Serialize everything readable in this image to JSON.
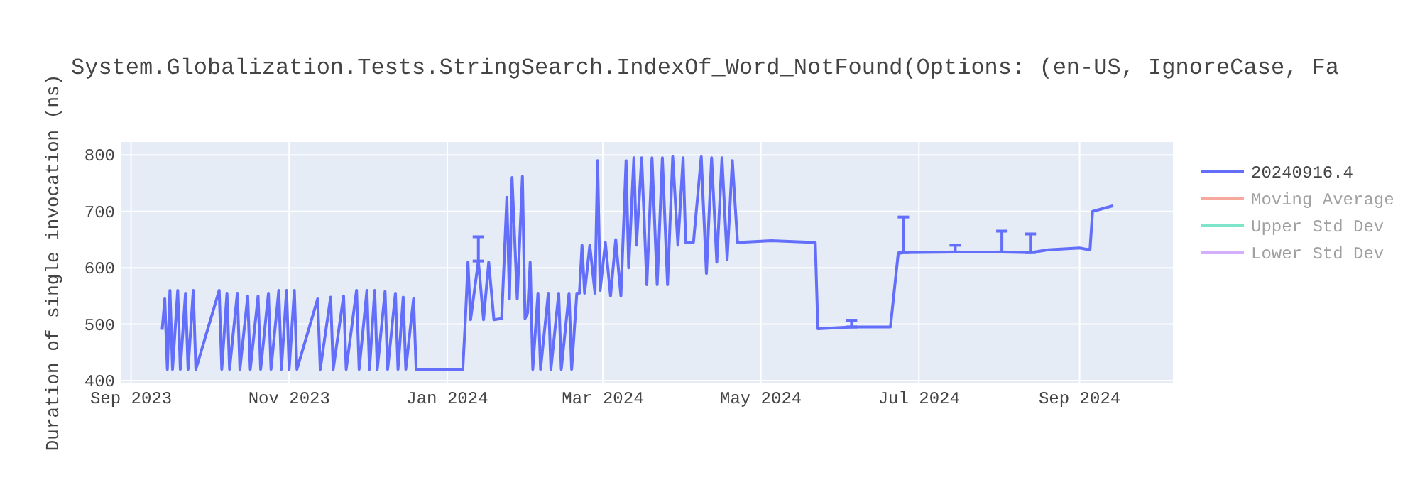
{
  "chart_data": {
    "type": "line",
    "title": "System.Globalization.Tests.StringSearch.IndexOf_Word_NotFound(Options: (en-US, IgnoreCase, Fa",
    "ylabel": "Duration of single invocation (ns)",
    "xlim": [
      "2023-08-28",
      "2024-10-07"
    ],
    "xticks": [
      {
        "value": "2023-09-01",
        "label": "Sep 2023"
      },
      {
        "value": "2023-11-01",
        "label": "Nov 2023"
      },
      {
        "value": "2024-01-01",
        "label": "Jan 2024"
      },
      {
        "value": "2024-03-01",
        "label": "Mar 2024"
      },
      {
        "value": "2024-05-01",
        "label": "May 2024"
      },
      {
        "value": "2024-07-01",
        "label": "Jul 2024"
      },
      {
        "value": "2024-09-01",
        "label": "Sep 2024"
      }
    ],
    "ylim": [
      395,
      823
    ],
    "yticks": [
      400,
      500,
      600,
      700,
      800
    ],
    "grid": true,
    "legend": "right",
    "line_style": "solid",
    "marker": "none",
    "series": [
      {
        "name": "20240916.4",
        "color": "#636efa",
        "x": [
          "2023-09-13",
          "2023-09-14",
          "2023-09-15",
          "2023-09-16",
          "2023-09-17",
          "2023-09-19",
          "2023-09-20",
          "2023-09-22",
          "2023-09-23",
          "2023-09-25",
          "2023-09-26",
          "2023-10-05",
          "2023-10-06",
          "2023-10-08",
          "2023-10-09",
          "2023-10-12",
          "2023-10-13",
          "2023-10-16",
          "2023-10-17",
          "2023-10-20",
          "2023-10-21",
          "2023-10-24",
          "2023-10-25",
          "2023-10-28",
          "2023-10-29",
          "2023-10-31",
          "2023-11-01",
          "2023-11-03",
          "2023-11-04",
          "2023-11-12",
          "2023-11-13",
          "2023-11-17",
          "2023-11-18",
          "2023-11-22",
          "2023-11-23",
          "2023-11-27",
          "2023-11-28",
          "2023-12-01",
          "2023-12-02",
          "2023-12-04",
          "2023-12-05",
          "2023-12-08",
          "2023-12-09",
          "2023-12-12",
          "2023-12-13",
          "2023-12-15",
          "2023-12-16",
          "2023-12-19",
          "2023-12-20",
          "2024-01-07",
          "2024-01-08",
          "2024-01-09",
          "2024-01-10",
          "2024-01-13",
          "2024-01-15",
          "2024-01-17",
          "2024-01-19",
          "2024-01-22",
          "2024-01-24",
          "2024-01-25",
          "2024-01-26",
          "2024-01-28",
          "2024-01-30",
          "2024-01-31",
          "2024-02-01",
          "2024-02-02",
          "2024-02-03",
          "2024-02-05",
          "2024-02-06",
          "2024-02-09",
          "2024-02-10",
          "2024-02-13",
          "2024-02-14",
          "2024-02-17",
          "2024-02-18",
          "2024-02-20",
          "2024-02-21",
          "2024-02-22",
          "2024-02-23",
          "2024-02-25",
          "2024-02-27",
          "2024-02-28",
          "2024-02-29",
          "2024-03-02",
          "2024-03-04",
          "2024-03-06",
          "2024-03-08",
          "2024-03-10",
          "2024-03-11",
          "2024-03-13",
          "2024-03-14",
          "2024-03-16",
          "2024-03-18",
          "2024-03-20",
          "2024-03-22",
          "2024-03-24",
          "2024-03-26",
          "2024-03-28",
          "2024-03-30",
          "2024-04-01",
          "2024-04-02",
          "2024-04-05",
          "2024-04-08",
          "2024-04-10",
          "2024-04-12",
          "2024-04-14",
          "2024-04-16",
          "2024-04-18",
          "2024-04-20",
          "2024-04-22",
          "2024-05-05",
          "2024-05-22",
          "2024-05-23",
          "2024-06-05",
          "2024-06-20",
          "2024-06-23",
          "2024-06-25",
          "2024-07-15",
          "2024-08-02",
          "2024-08-13",
          "2024-08-20",
          "2024-09-01",
          "2024-09-05",
          "2024-09-06",
          "2024-09-10",
          "2024-09-14"
        ],
        "values": [
          490,
          545,
          420,
          560,
          420,
          560,
          420,
          555,
          420,
          560,
          420,
          560,
          420,
          555,
          420,
          555,
          420,
          550,
          420,
          550,
          420,
          555,
          420,
          560,
          420,
          560,
          420,
          560,
          420,
          545,
          420,
          548,
          420,
          550,
          420,
          560,
          420,
          560,
          420,
          560,
          420,
          558,
          420,
          555,
          420,
          548,
          420,
          545,
          420,
          420,
          508,
          610,
          508,
          612,
          508,
          610,
          508,
          510,
          725,
          545,
          760,
          545,
          762,
          510,
          520,
          610,
          420,
          555,
          420,
          555,
          420,
          555,
          420,
          555,
          420,
          555,
          555,
          640,
          555,
          640,
          555,
          790,
          560,
          645,
          550,
          650,
          550,
          790,
          600,
          795,
          640,
          795,
          570,
          795,
          570,
          795,
          570,
          797,
          640,
          795,
          645,
          645,
          797,
          590,
          795,
          610,
          795,
          615,
          790,
          645,
          648,
          645,
          492,
          495,
          495,
          625,
          627,
          628,
          628,
          627,
          632,
          635,
          632,
          700,
          705,
          710
        ],
        "errors": [
          null,
          null,
          null,
          null,
          null,
          null,
          null,
          null,
          null,
          null,
          null,
          null,
          null,
          null,
          null,
          null,
          null,
          null,
          null,
          null,
          null,
          null,
          null,
          null,
          null,
          null,
          null,
          null,
          null,
          null,
          null,
          null,
          null,
          null,
          null,
          null,
          null,
          null,
          null,
          null,
          null,
          null,
          null,
          null,
          null,
          null,
          null,
          null,
          null,
          null,
          null,
          null,
          null,
          [
            612,
            655
          ],
          null,
          null,
          null,
          null,
          null,
          null,
          null,
          null,
          null,
          null,
          null,
          null,
          null,
          null,
          null,
          null,
          null,
          null,
          null,
          null,
          null,
          null,
          null,
          null,
          null,
          null,
          null,
          null,
          null,
          null,
          null,
          null,
          null,
          null,
          null,
          null,
          null,
          null,
          null,
          null,
          null,
          null,
          null,
          null,
          null,
          null,
          null,
          null,
          null,
          null,
          null,
          null,
          null,
          null,
          null,
          null,
          null,
          null,
          null,
          [
            495,
            507
          ],
          null,
          null,
          [
            627,
            690
          ],
          [
            628,
            640
          ],
          [
            628,
            665
          ],
          [
            627,
            660
          ],
          null,
          null,
          null,
          null,
          null,
          null
        ]
      },
      {
        "name": "Moving Average",
        "color": "#ef553b"
      },
      {
        "name": "Upper Std Dev",
        "color": "#00cc96"
      },
      {
        "name": "Lower Std Dev",
        "color": "#ab63fa"
      }
    ]
  }
}
